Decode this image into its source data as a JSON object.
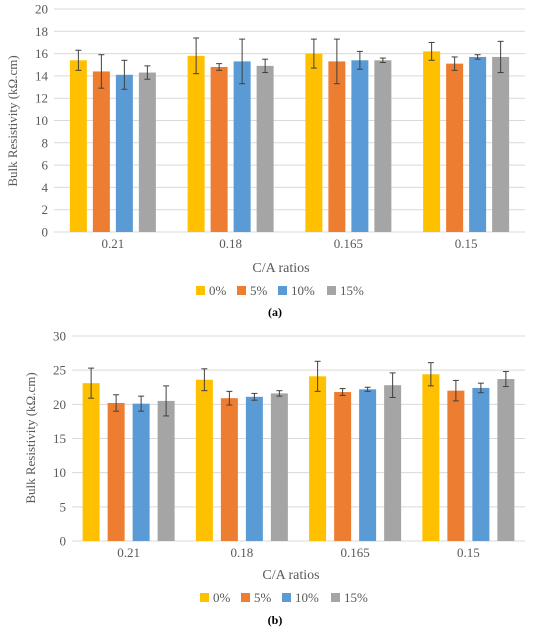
{
  "colors": {
    "s0": "#ffc000",
    "s5": "#ed7d31",
    "s10": "#5b9bd5",
    "s15": "#a5a5a5",
    "grid": "#d9d9d9",
    "text": "#595959",
    "error_bar": "#404040"
  },
  "chart_data": [
    {
      "type": "bar",
      "caption": "(a)",
      "categories": [
        "0.21",
        "0.18",
        "0.165",
        "0.15"
      ],
      "xlabel": "C/A ratios",
      "ylabel": "Bulk Resistivity (kΩ.cm)",
      "ylim": [
        0,
        20
      ],
      "yticks": [
        0,
        2,
        4,
        6,
        8,
        10,
        12,
        14,
        16,
        18,
        20
      ],
      "grid": true,
      "legend_position": "bottom",
      "series": [
        {
          "name": "0%",
          "color": "#ffc000",
          "values": [
            15.4,
            15.8,
            16.0,
            16.2
          ],
          "errors": [
            0.9,
            1.6,
            1.3,
            0.8
          ]
        },
        {
          "name": "5%",
          "color": "#ed7d31",
          "values": [
            14.4,
            14.8,
            15.3,
            15.1
          ],
          "errors": [
            1.5,
            0.3,
            2.0,
            0.6
          ]
        },
        {
          "name": "10%",
          "color": "#5b9bd5",
          "values": [
            14.1,
            15.3,
            15.4,
            15.7
          ],
          "errors": [
            1.3,
            2.0,
            0.8,
            0.2
          ]
        },
        {
          "name": "15%",
          "color": "#a5a5a5",
          "values": [
            14.3,
            14.9,
            15.4,
            15.7
          ],
          "errors": [
            0.6,
            0.6,
            0.2,
            1.4
          ]
        }
      ]
    },
    {
      "type": "bar",
      "caption": "(b)",
      "categories": [
        "0.21",
        "0.18",
        "0.165",
        "0.15"
      ],
      "xlabel": "C/A ratios",
      "ylabel": "Bulk Resistivity (kΩ.cm)",
      "ylim": [
        0,
        30
      ],
      "yticks": [
        0,
        5,
        10,
        15,
        20,
        25,
        30
      ],
      "grid": true,
      "legend_position": "bottom",
      "series": [
        {
          "name": "0%",
          "color": "#ffc000",
          "values": [
            23.1,
            23.6,
            24.1,
            24.4
          ],
          "errors": [
            2.2,
            1.6,
            2.2,
            1.7
          ]
        },
        {
          "name": "5%",
          "color": "#ed7d31",
          "values": [
            20.2,
            20.9,
            21.8,
            22.0
          ],
          "errors": [
            1.2,
            1.0,
            0.5,
            1.5
          ]
        },
        {
          "name": "10%",
          "color": "#5b9bd5",
          "values": [
            20.1,
            21.1,
            22.2,
            22.4
          ],
          "errors": [
            1.1,
            0.5,
            0.3,
            0.7
          ]
        },
        {
          "name": "15%",
          "color": "#a5a5a5",
          "values": [
            20.5,
            21.6,
            22.8,
            23.7
          ],
          "errors": [
            2.2,
            0.4,
            1.8,
            1.1
          ]
        }
      ]
    }
  ]
}
